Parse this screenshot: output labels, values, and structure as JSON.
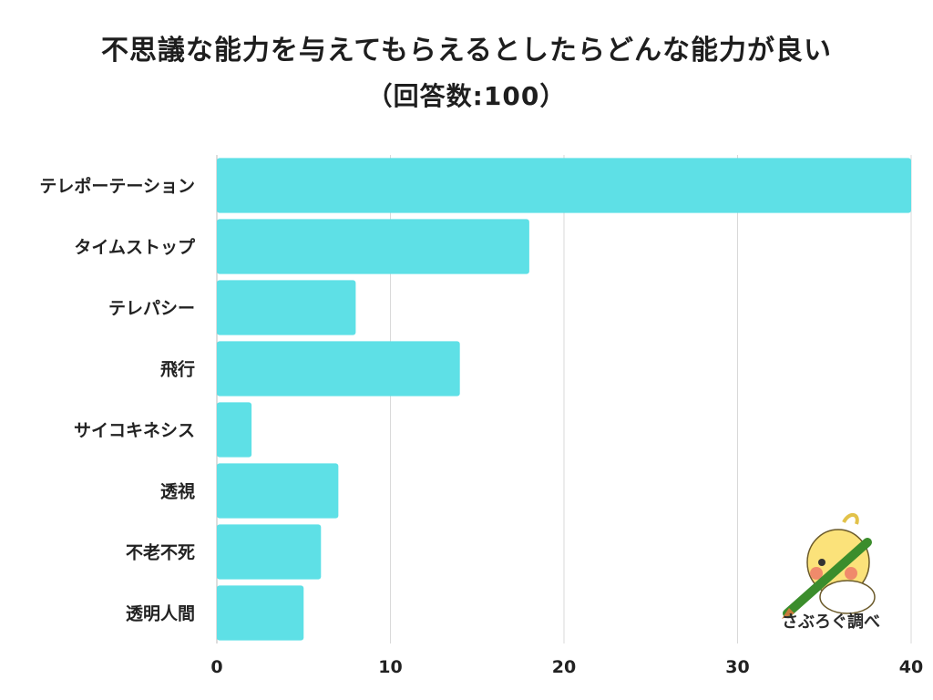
{
  "title_line1": "不思議な能力を与えてもらえるとしたらどんな能力が良い",
  "title_line2": "（回答数:100）",
  "watermark_text": "さぶろぐ調べ",
  "chart_data": {
    "type": "bar",
    "orientation": "horizontal",
    "categories": [
      "テレポーテーション",
      "タイムストップ",
      "テレパシー",
      "飛行",
      "サイコキネシス",
      "透視",
      "不老不死",
      "透明人間"
    ],
    "values": [
      40,
      18,
      8,
      14,
      2,
      7,
      6,
      5
    ],
    "xlim": [
      0,
      40
    ],
    "xticks": [
      0,
      10,
      20,
      30,
      40
    ],
    "bar_color": "#5ee0e6",
    "grid": true
  },
  "colors": {
    "bar": "#5ee0e6",
    "grid": "#d9d9d9",
    "text": "#222222"
  }
}
